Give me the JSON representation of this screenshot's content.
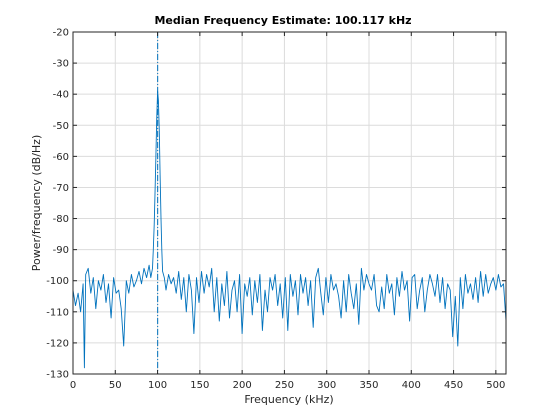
{
  "chart_data": {
    "type": "line",
    "title": "Median Frequency Estimate: 100.117 kHz",
    "xlabel": "Frequency (kHz)",
    "ylabel": "Power/frequency (dB/Hz)",
    "xlim": [
      0,
      512
    ],
    "ylim": [
      -130,
      -20
    ],
    "xticks": [
      0,
      50,
      100,
      150,
      200,
      250,
      300,
      350,
      400,
      450,
      500
    ],
    "yticks": [
      -130,
      -120,
      -110,
      -100,
      -90,
      -80,
      -70,
      -60,
      -50,
      -40,
      -30,
      -20
    ],
    "grid": true,
    "median_line_x": 100.117,
    "colors": {
      "series": "#0072bd",
      "axis": "#262626",
      "grid": "#dcdcdc"
    },
    "series": [
      {
        "x": [
          0,
          3,
          6,
          9,
          12,
          13.5,
          15,
          18,
          21,
          24,
          27,
          30,
          33,
          36,
          39,
          42,
          45,
          48,
          51,
          54,
          57,
          60,
          63,
          66,
          69,
          72,
          75,
          78,
          81,
          84,
          87,
          90,
          92,
          94,
          95,
          96,
          97,
          98,
          99,
          100,
          101,
          102,
          103,
          104,
          105,
          106,
          108,
          110,
          113,
          116,
          119,
          122,
          125,
          128,
          131,
          134,
          137,
          140,
          143,
          146,
          149,
          152,
          155,
          158,
          161,
          164,
          167,
          170,
          173,
          176,
          179,
          182,
          185,
          188,
          191,
          194,
          197,
          200,
          203,
          206,
          209,
          212,
          215,
          218,
          221,
          224,
          227,
          230,
          233,
          236,
          239,
          242,
          245,
          248,
          251,
          254,
          257,
          260,
          263,
          266,
          269,
          272,
          275,
          278,
          281,
          284,
          287,
          290,
          293,
          296,
          299,
          302,
          305,
          308,
          311,
          314,
          317,
          320,
          323,
          326,
          329,
          332,
          335,
          338,
          341,
          344,
          347,
          350,
          353,
          356,
          359,
          362,
          365,
          368,
          371,
          374,
          377,
          380,
          383,
          386,
          389,
          392,
          395,
          398,
          401,
          404,
          407,
          410,
          413,
          416,
          419,
          422,
          425,
          428,
          431,
          434,
          437,
          440,
          443,
          446,
          449,
          452,
          455,
          458,
          461,
          464,
          467,
          470,
          473,
          476,
          479,
          482,
          485,
          488,
          491,
          494,
          497,
          500,
          503,
          506,
          509,
          512
        ],
        "y": [
          -103,
          -108,
          -104,
          -110,
          -101,
          -128,
          -98,
          -96,
          -104,
          -99,
          -109,
          -100,
          -103,
          -98,
          -107,
          -101,
          -112,
          -99,
          -104,
          -103,
          -109,
          -121,
          -100,
          -104,
          -98,
          -102,
          -100,
          -97,
          -101,
          -96,
          -99,
          -95,
          -99,
          -96,
          -90,
          -82,
          -72,
          -60,
          -48,
          -39,
          -42,
          -52,
          -66,
          -80,
          -90,
          -97,
          -99,
          -103,
          -98,
          -101,
          -99,
          -104,
          -97,
          -106,
          -99,
          -110,
          -98,
          -103,
          -117,
          -99,
          -107,
          -97,
          -104,
          -98,
          -102,
          -96,
          -110,
          -99,
          -113,
          -101,
          -108,
          -97,
          -112,
          -103,
          -100,
          -110,
          -98,
          -117,
          -101,
          -105,
          -99,
          -111,
          -100,
          -107,
          -98,
          -116,
          -103,
          -110,
          -99,
          -103,
          -98,
          -108,
          -101,
          -112,
          -99,
          -116,
          -98,
          -105,
          -100,
          -111,
          -98,
          -104,
          -99,
          -108,
          -100,
          -115,
          -99,
          -96,
          -104,
          -111,
          -99,
          -107,
          -98,
          -103,
          -101,
          -105,
          -112,
          -100,
          -110,
          -98,
          -104,
          -109,
          -101,
          -114,
          -96,
          -103,
          -98,
          -101,
          -103,
          -98,
          -108,
          -110,
          -102,
          -109,
          -98,
          -104,
          -101,
          -111,
          -99,
          -105,
          -97,
          -103,
          -100,
          -113,
          -99,
          -98,
          -109,
          -103,
          -99,
          -110,
          -103,
          -98,
          -101,
          -105,
          -98,
          -107,
          -99,
          -109,
          -101,
          -103,
          -118,
          -105,
          -121,
          -99,
          -109,
          -98,
          -104,
          -101,
          -106,
          -99,
          -107,
          -97,
          -105,
          -98,
          -104,
          -101,
          -99,
          -103,
          -98,
          -102,
          -101,
          -113
        ]
      }
    ]
  }
}
